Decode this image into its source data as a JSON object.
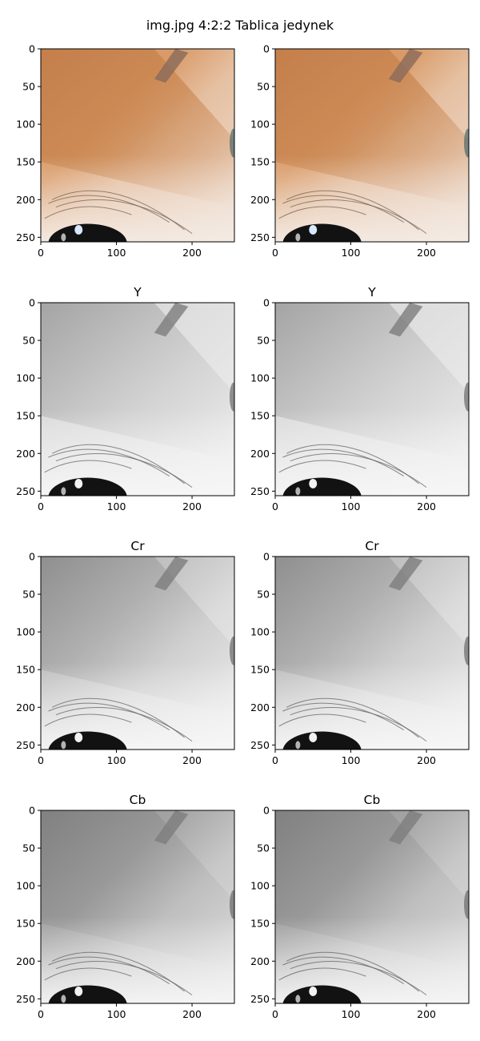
{
  "figure": {
    "suptitle": "img.jpg 4:2:2 Tablica jedynek"
  },
  "colors": {
    "skin_light": "#ecd9cd",
    "skin_orange": "#c98650",
    "gray_light": "#e6e6e6",
    "gray_dark": "#9a9a9a",
    "eye": "#121212"
  },
  "chart_data": [
    {
      "type": "heatmap",
      "panel": "row1-left",
      "channel": "rgb",
      "title": "",
      "xlim": [
        0,
        256
      ],
      "ylim": [
        256,
        0
      ],
      "xticks": [
        0,
        100,
        200
      ],
      "yticks": [
        0,
        50,
        100,
        150,
        200,
        250
      ]
    },
    {
      "type": "heatmap",
      "panel": "row1-right",
      "channel": "rgb",
      "title": "",
      "xlim": [
        0,
        256
      ],
      "ylim": [
        256,
        0
      ],
      "xticks": [
        0,
        100,
        200
      ],
      "yticks": [
        0,
        50,
        100,
        150,
        200,
        250
      ]
    },
    {
      "type": "heatmap",
      "panel": "row2-left",
      "channel": "gray",
      "title": "Y",
      "xlim": [
        0,
        256
      ],
      "ylim": [
        256,
        0
      ],
      "xticks": [
        0,
        100,
        200
      ],
      "yticks": [
        0,
        50,
        100,
        150,
        200,
        250
      ]
    },
    {
      "type": "heatmap",
      "panel": "row2-right",
      "channel": "gray",
      "title": "Y",
      "xlim": [
        0,
        256
      ],
      "ylim": [
        256,
        0
      ],
      "xticks": [
        0,
        100,
        200
      ],
      "yticks": [
        0,
        50,
        100,
        150,
        200,
        250
      ]
    },
    {
      "type": "heatmap",
      "panel": "row3-left",
      "channel": "gray",
      "title": "Cr",
      "xlim": [
        0,
        256
      ],
      "ylim": [
        256,
        0
      ],
      "xticks": [
        0,
        100,
        200
      ],
      "yticks": [
        0,
        50,
        100,
        150,
        200,
        250
      ]
    },
    {
      "type": "heatmap",
      "panel": "row3-right",
      "channel": "gray",
      "title": "Cr",
      "xlim": [
        0,
        256
      ],
      "ylim": [
        256,
        0
      ],
      "xticks": [
        0,
        100,
        200
      ],
      "yticks": [
        0,
        50,
        100,
        150,
        200,
        250
      ]
    },
    {
      "type": "heatmap",
      "panel": "row4-left",
      "channel": "gray",
      "title": "Cb",
      "xlim": [
        0,
        256
      ],
      "ylim": [
        256,
        0
      ],
      "xticks": [
        0,
        100,
        200
      ],
      "yticks": [
        0,
        50,
        100,
        150,
        200,
        250
      ]
    },
    {
      "type": "heatmap",
      "panel": "row4-right",
      "channel": "gray",
      "title": "Cb",
      "xlim": [
        0,
        256
      ],
      "ylim": [
        256,
        0
      ],
      "xticks": [
        0,
        100,
        200
      ],
      "yticks": [
        0,
        50,
        100,
        150,
        200,
        250
      ]
    }
  ]
}
